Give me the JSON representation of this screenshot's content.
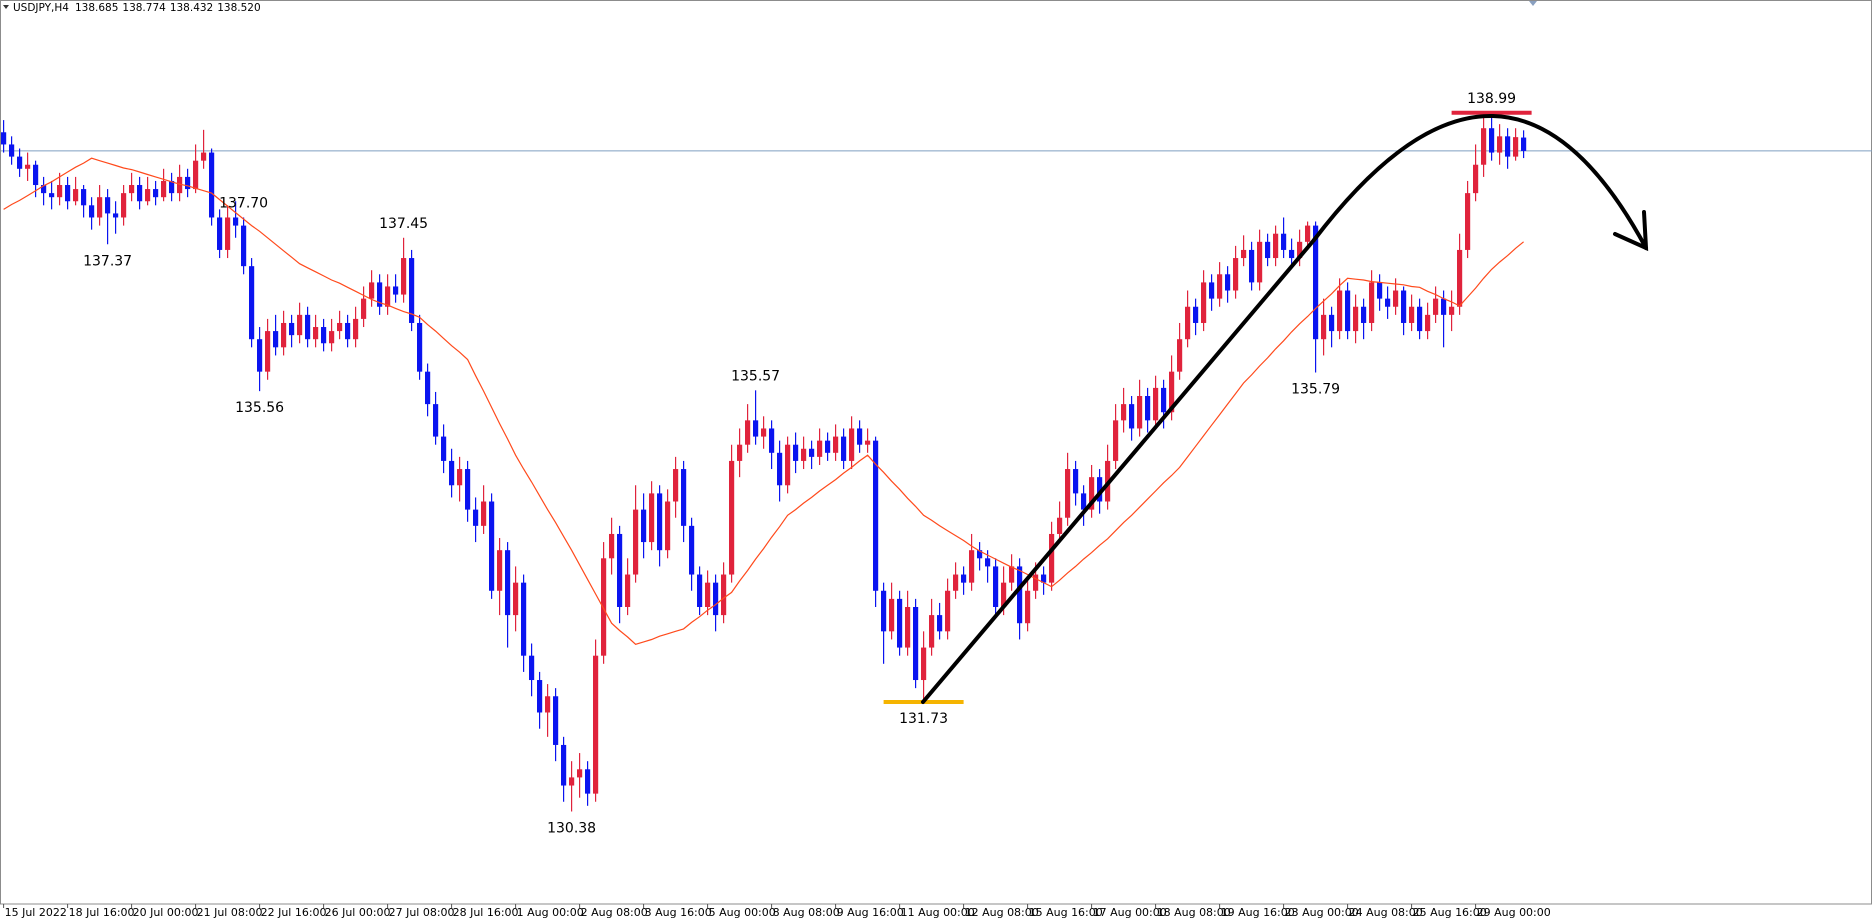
{
  "chart_data": {
    "type": "candlestick",
    "symbol": "USDJPY,H4",
    "ohlc_labels": [
      "138.685",
      "138.774",
      "138.432",
      "138.520"
    ],
    "up_color": "#e0233c",
    "down_color": "#0a14f0",
    "price_line_color": "#7f9fc0",
    "ylim": [
      129.24,
      140.38
    ],
    "categories": [
      "15 Jul 2022",
      null,
      null,
      null,
      null,
      null,
      null,
      null,
      "18 Jul 16:00",
      null,
      null,
      null,
      null,
      null,
      null,
      null,
      "20 Jul 00:00",
      null,
      null,
      null,
      null,
      null,
      null,
      null,
      "21 Jul 08:00",
      null,
      null,
      null,
      null,
      null,
      null,
      null,
      "22 Jul 16:00",
      null,
      null,
      null,
      null,
      null,
      null,
      null,
      "26 Jul 00:00",
      null,
      null,
      null,
      null,
      null,
      null,
      null,
      "27 Jul 08:00",
      null,
      null,
      null,
      null,
      null,
      null,
      null,
      "28 Jul 16:00",
      null,
      null,
      null,
      null,
      null,
      null,
      null,
      "1 Aug 00:00",
      null,
      null,
      null,
      null,
      null,
      null,
      null,
      "2 Aug 08:00",
      null,
      null,
      null,
      null,
      null,
      null,
      null,
      "3 Aug 16:00",
      null,
      null,
      null,
      null,
      null,
      null,
      null,
      "5 Aug 00:00",
      null,
      null,
      null,
      null,
      null,
      null,
      null,
      "8 Aug 08:00",
      null,
      null,
      null,
      null,
      null,
      null,
      null,
      "9 Aug 16:00",
      null,
      null,
      null,
      null,
      null,
      null,
      null,
      "11 Aug 00:00",
      null,
      null,
      null,
      null,
      null,
      null,
      null,
      "12 Aug 08:00",
      null,
      null,
      null,
      null,
      null,
      null,
      null,
      "15 Aug 16:00",
      null,
      null,
      null,
      null,
      null,
      null,
      null,
      "17 Aug 00:00",
      null,
      null,
      null,
      null,
      null,
      null,
      null,
      "18 Aug 08:00",
      null,
      null,
      null,
      null,
      null,
      null,
      null,
      "19 Aug 16:00",
      null,
      null,
      null,
      null,
      null,
      null,
      null,
      "23 Aug 00:00",
      null,
      null,
      null,
      null,
      null,
      null,
      null,
      "24 Aug 08:00",
      null,
      null,
      null,
      null,
      null,
      null,
      null,
      "25 Aug 16:00",
      null,
      null,
      null,
      null,
      null,
      null,
      null,
      "29 Aug 00:00",
      null,
      null,
      null,
      null,
      null,
      null
    ],
    "open": [
      138.75,
      138.6,
      138.45,
      138.3,
      138.35,
      138.1,
      138.0,
      137.95,
      138.1,
      137.9,
      138.05,
      137.85,
      137.7,
      137.95,
      137.75,
      137.7,
      138.0,
      138.1,
      137.9,
      138.05,
      137.95,
      138.15,
      138.0,
      138.2,
      138.05,
      138.4,
      138.5,
      137.7,
      137.3,
      137.7,
      137.6,
      137.1,
      136.2,
      135.8,
      136.3,
      136.1,
      136.4,
      136.25,
      136.5,
      136.2,
      136.35,
      136.15,
      136.3,
      136.4,
      136.2,
      136.45,
      136.7,
      136.9,
      136.6,
      136.85,
      136.75,
      137.2,
      136.4,
      135.8,
      135.4,
      135.0,
      134.7,
      134.4,
      134.6,
      134.1,
      133.9,
      134.2,
      133.1,
      133.6,
      132.8,
      133.2,
      132.3,
      132.0,
      131.6,
      131.8,
      131.2,
      130.7,
      130.8,
      130.9,
      130.6,
      132.3,
      133.5,
      133.8,
      132.9,
      133.3,
      134.1,
      133.7,
      134.3,
      133.6,
      134.2,
      134.6,
      133.9,
      133.3,
      132.9,
      133.2,
      132.8,
      133.3,
      134.7,
      134.9,
      135.2,
      135.0,
      135.1,
      134.8,
      134.4,
      134.9,
      134.7,
      134.85,
      134.75,
      134.95,
      134.8,
      135.0,
      134.7,
      135.1,
      134.9,
      134.95,
      133.1,
      132.6,
      133.0,
      132.4,
      132.9,
      132.0,
      132.4,
      132.8,
      132.6,
      133.1,
      133.3,
      133.2,
      133.6,
      133.5,
      133.4,
      132.9,
      133.2,
      133.4,
      132.7,
      133.1,
      133.3,
      133.2,
      133.8,
      134.0,
      134.6,
      134.3,
      134.1,
      134.5,
      134.2,
      134.7,
      135.2,
      135.4,
      135.1,
      135.5,
      135.2,
      135.6,
      135.3,
      135.8,
      136.2,
      136.6,
      136.4,
      136.9,
      136.7,
      137.0,
      136.8,
      137.2,
      137.3,
      136.9,
      137.4,
      137.2,
      137.5,
      137.3,
      137.2,
      137.4,
      137.6,
      136.2,
      136.5,
      136.3,
      136.8,
      136.3,
      136.6,
      136.4,
      136.9,
      136.7,
      136.6,
      136.8,
      136.4,
      136.6,
      136.3,
      136.5,
      136.7,
      136.5,
      136.6,
      137.3,
      138.0,
      138.35,
      138.8,
      138.5,
      138.7,
      138.45,
      138.685
    ],
    "high": [
      138.9,
      138.7,
      138.55,
      138.5,
      138.4,
      138.2,
      138.15,
      138.25,
      138.2,
      138.2,
      138.1,
      137.95,
      138.1,
      138.05,
      137.9,
      138.1,
      138.25,
      138.2,
      138.2,
      138.15,
      138.3,
      138.25,
      138.35,
      138.3,
      138.6,
      138.78,
      138.55,
      137.8,
      137.85,
      137.9,
      137.7,
      137.2,
      136.35,
      136.45,
      136.5,
      136.55,
      136.5,
      136.65,
      136.6,
      136.5,
      136.45,
      136.45,
      136.55,
      136.5,
      136.6,
      136.85,
      137.05,
      137.0,
      137.0,
      137.0,
      137.45,
      137.3,
      136.5,
      135.9,
      135.55,
      135.15,
      134.85,
      134.75,
      134.7,
      134.25,
      134.4,
      134.3,
      133.75,
      133.7,
      133.4,
      133.3,
      132.45,
      132.1,
      131.95,
      131.9,
      131.3,
      131.0,
      131.1,
      131.0,
      132.5,
      133.7,
      134.0,
      133.9,
      133.5,
      134.4,
      134.3,
      134.45,
      134.4,
      134.35,
      134.75,
      134.7,
      134.0,
      133.4,
      133.35,
      133.3,
      133.45,
      134.9,
      135.1,
      135.4,
      135.57,
      135.25,
      135.2,
      134.95,
      135.0,
      135.05,
      135.0,
      134.95,
      135.1,
      135.05,
      135.15,
      135.1,
      135.25,
      135.2,
      135.1,
      135.0,
      133.2,
      133.2,
      133.1,
      133.1,
      133.0,
      132.6,
      133.0,
      132.95,
      133.25,
      133.45,
      133.4,
      133.8,
      133.7,
      133.6,
      133.5,
      133.4,
      133.55,
      133.5,
      133.25,
      133.45,
      133.4,
      133.95,
      134.2,
      134.8,
      134.7,
      134.4,
      134.65,
      134.6,
      134.9,
      135.4,
      135.6,
      135.5,
      135.7,
      135.6,
      135.75,
      135.7,
      136.0,
      136.4,
      136.8,
      136.7,
      137.05,
      137.0,
      137.15,
      137.1,
      137.35,
      137.48,
      137.4,
      137.55,
      137.5,
      137.6,
      137.7,
      137.44,
      137.55,
      137.65,
      137.65,
      136.7,
      136.6,
      136.95,
      136.9,
      136.75,
      136.7,
      137.05,
      137.0,
      136.85,
      136.95,
      136.85,
      136.75,
      136.7,
      136.65,
      136.85,
      136.8,
      136.8,
      137.5,
      138.15,
      138.6,
      138.95,
      138.99,
      138.85,
      138.8,
      138.8,
      138.774
    ],
    "low": [
      138.5,
      138.35,
      138.2,
      138.15,
      137.95,
      137.85,
      137.8,
      137.85,
      137.8,
      137.85,
      137.7,
      137.55,
      137.6,
      137.37,
      137.5,
      137.6,
      137.9,
      137.8,
      137.85,
      137.85,
      137.9,
      137.9,
      137.9,
      137.95,
      138.0,
      138.3,
      137.6,
      137.2,
      137.2,
      137.45,
      137.0,
      136.1,
      135.56,
      135.7,
      136.0,
      136.0,
      136.1,
      136.15,
      136.1,
      136.1,
      136.05,
      136.05,
      136.2,
      136.1,
      136.1,
      136.35,
      136.6,
      136.5,
      136.5,
      136.65,
      136.65,
      136.3,
      135.7,
      135.25,
      134.9,
      134.55,
      134.25,
      134.2,
      133.95,
      133.7,
      133.8,
      133.0,
      132.8,
      132.4,
      132.6,
      132.1,
      131.8,
      131.4,
      131.3,
      131.0,
      130.5,
      130.38,
      130.55,
      130.45,
      130.5,
      132.2,
      133.3,
      132.7,
      132.8,
      133.2,
      133.5,
      133.6,
      133.4,
      133.5,
      134.0,
      133.7,
      133.1,
      132.8,
      132.8,
      132.6,
      132.7,
      133.2,
      134.5,
      134.8,
      134.9,
      134.85,
      134.6,
      134.2,
      134.3,
      134.55,
      134.6,
      134.6,
      134.65,
      134.7,
      134.7,
      134.6,
      134.6,
      134.8,
      134.8,
      132.9,
      132.2,
      132.5,
      132.3,
      132.3,
      131.9,
      131.73,
      132.3,
      132.5,
      132.5,
      133.0,
      133.05,
      133.1,
      133.35,
      133.2,
      132.8,
      132.8,
      133.1,
      132.5,
      132.6,
      133.0,
      133.05,
      133.1,
      133.7,
      133.9,
      134.15,
      133.9,
      134.0,
      134.05,
      134.1,
      134.6,
      135.05,
      134.95,
      135.0,
      135.05,
      135.1,
      135.1,
      135.2,
      135.7,
      136.1,
      136.25,
      136.3,
      136.55,
      136.6,
      136.65,
      136.7,
      137.1,
      136.8,
      136.8,
      137.1,
      137.1,
      137.2,
      137.1,
      137.1,
      137.3,
      135.79,
      136.0,
      136.1,
      136.2,
      136.2,
      136.15,
      136.2,
      136.3,
      136.55,
      136.45,
      136.5,
      136.25,
      136.3,
      136.2,
      136.2,
      136.4,
      136.1,
      136.3,
      136.5,
      137.2,
      137.9,
      138.2,
      138.4,
      138.35,
      138.3,
      138.4,
      138.432
    ],
    "close": [
      138.6,
      138.45,
      138.3,
      138.35,
      138.1,
      138.0,
      137.95,
      138.1,
      137.9,
      138.05,
      137.85,
      137.7,
      137.95,
      137.75,
      137.7,
      138.0,
      138.1,
      137.9,
      138.05,
      137.95,
      138.15,
      138.0,
      138.2,
      138.05,
      138.4,
      138.5,
      137.7,
      137.3,
      137.7,
      137.6,
      137.1,
      136.2,
      135.8,
      136.3,
      136.1,
      136.4,
      136.25,
      136.5,
      136.2,
      136.35,
      136.15,
      136.3,
      136.4,
      136.2,
      136.45,
      136.7,
      136.9,
      136.6,
      136.85,
      136.75,
      137.2,
      136.4,
      135.8,
      135.4,
      135.0,
      134.7,
      134.4,
      134.6,
      134.1,
      133.9,
      134.2,
      133.1,
      133.6,
      132.8,
      133.2,
      132.3,
      132.0,
      131.6,
      131.8,
      131.2,
      130.7,
      130.8,
      130.9,
      130.6,
      132.3,
      133.5,
      133.8,
      132.9,
      133.3,
      134.1,
      133.7,
      134.3,
      133.6,
      134.2,
      134.6,
      133.9,
      133.3,
      132.9,
      133.2,
      132.8,
      133.3,
      134.7,
      134.9,
      135.2,
      135.0,
      135.1,
      134.8,
      134.4,
      134.9,
      134.7,
      134.85,
      134.75,
      134.95,
      134.8,
      135.0,
      134.7,
      135.1,
      134.9,
      134.95,
      133.1,
      132.6,
      133.0,
      132.4,
      132.9,
      132.0,
      132.4,
      132.8,
      132.6,
      133.1,
      133.3,
      133.2,
      133.6,
      133.5,
      133.4,
      132.9,
      133.2,
      133.4,
      132.7,
      133.1,
      133.3,
      133.2,
      133.8,
      134.0,
      134.6,
      134.3,
      134.1,
      134.5,
      134.2,
      134.7,
      135.2,
      135.4,
      135.1,
      135.5,
      135.2,
      135.6,
      135.3,
      135.8,
      136.2,
      136.6,
      136.4,
      136.9,
      136.7,
      137.0,
      136.8,
      137.2,
      137.3,
      136.9,
      137.4,
      137.2,
      137.5,
      137.3,
      137.2,
      137.4,
      137.6,
      136.2,
      136.5,
      136.3,
      136.8,
      136.3,
      136.6,
      136.4,
      136.9,
      136.7,
      136.6,
      136.8,
      136.4,
      136.6,
      136.3,
      136.5,
      136.7,
      136.5,
      136.6,
      137.3,
      138.0,
      138.35,
      138.8,
      138.5,
      138.7,
      138.45,
      138.69,
      138.52
    ],
    "ma": {
      "color": "#ff4a1c",
      "values": [
        137.8,
        137.86,
        137.91,
        137.97,
        138.03,
        138.09,
        138.14,
        138.2,
        138.26,
        138.32,
        138.37,
        138.43,
        138.4,
        138.37,
        138.34,
        138.31,
        138.29,
        138.26,
        138.23,
        138.2,
        138.17,
        138.14,
        138.11,
        138.09,
        138.06,
        138.03,
        138.0,
        137.92,
        137.84,
        137.76,
        137.68,
        137.6,
        137.53,
        137.45,
        137.37,
        137.29,
        137.21,
        137.13,
        137.08,
        137.03,
        136.98,
        136.93,
        136.89,
        136.84,
        136.79,
        136.74,
        136.69,
        136.65,
        136.62,
        136.58,
        136.54,
        136.51,
        136.47,
        136.38,
        136.3,
        136.21,
        136.12,
        136.04,
        135.95,
        135.75,
        135.56,
        135.36,
        135.16,
        134.97,
        134.77,
        134.6,
        134.44,
        134.27,
        134.1,
        133.94,
        133.77,
        133.6,
        133.42,
        133.24,
        133.06,
        132.88,
        132.7,
        132.61,
        132.53,
        132.44,
        132.47,
        132.5,
        132.54,
        132.57,
        132.6,
        132.63,
        132.71,
        132.78,
        132.86,
        132.93,
        133.01,
        133.08,
        133.22,
        133.35,
        133.49,
        133.62,
        133.76,
        133.89,
        134.03,
        134.1,
        134.18,
        134.25,
        134.33,
        134.4,
        134.47,
        134.55,
        134.62,
        134.7,
        134.77,
        134.66,
        134.56,
        134.45,
        134.35,
        134.24,
        134.14,
        134.03,
        133.97,
        133.9,
        133.84,
        133.78,
        133.72,
        133.65,
        133.59,
        133.54,
        133.49,
        133.44,
        133.39,
        133.35,
        133.3,
        133.25,
        133.2,
        133.15,
        133.23,
        133.32,
        133.4,
        133.49,
        133.57,
        133.66,
        133.74,
        133.84,
        133.94,
        134.03,
        134.13,
        134.23,
        134.33,
        134.43,
        134.52,
        134.62,
        134.75,
        134.88,
        135.01,
        135.14,
        135.27,
        135.4,
        135.53,
        135.66,
        135.76,
        135.87,
        135.97,
        136.08,
        136.18,
        136.29,
        136.39,
        136.48,
        136.58,
        136.67,
        136.76,
        136.86,
        136.95,
        136.94,
        136.93,
        136.91,
        136.9,
        136.89,
        136.88,
        136.87,
        136.85,
        136.84,
        136.79,
        136.75,
        136.7,
        136.66,
        136.61,
        136.72,
        136.83,
        136.95,
        137.06,
        137.15,
        137.23,
        137.32,
        137.4
      ]
    },
    "annotations": [
      137.37,
      135.56,
      137.45,
      130.38,
      135.57,
      131.73,
      {
        "value": 137.7,
        "label": "137.70"
      },
      135.79,
      138.99
    ],
    "annotation_line_colors": [
      null,
      null,
      null,
      null,
      null,
      "#f5b400",
      null,
      null,
      "#e0233c"
    ]
  }
}
